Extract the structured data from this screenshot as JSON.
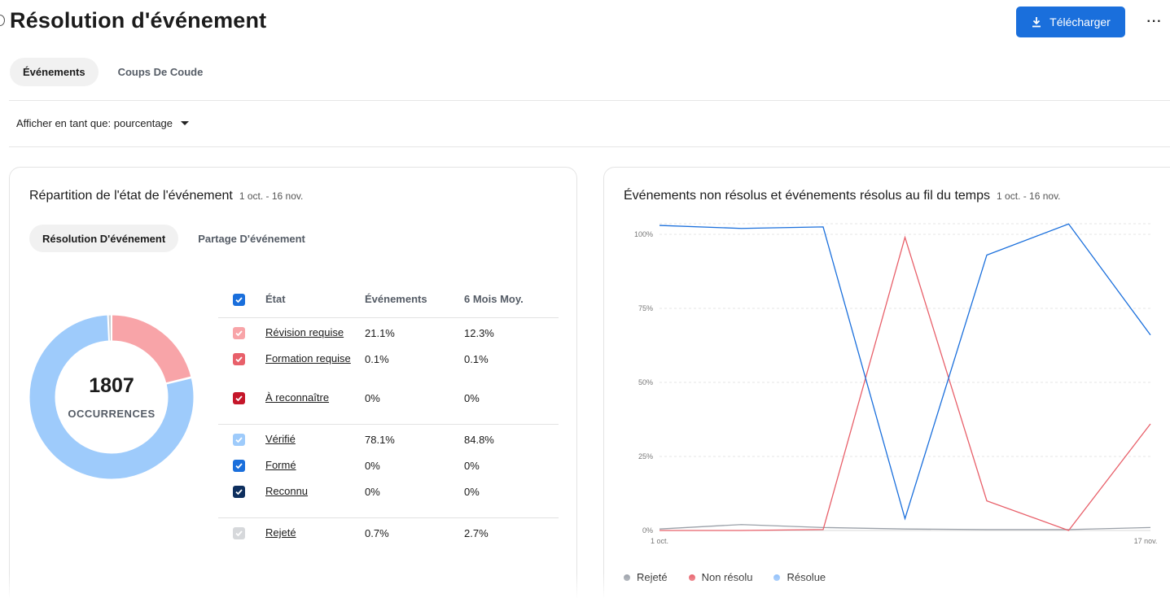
{
  "page": {
    "title": "Résolution d'événement",
    "download_label": "Télécharger",
    "more_label": "···"
  },
  "tabs": [
    {
      "label": "Événements",
      "active": true
    },
    {
      "label": "Coups De Coude",
      "active": false
    }
  ],
  "display_as": {
    "label": "Afficher en tant que: pourcentage"
  },
  "left_card": {
    "title": "Répartition de l'état de l'événement",
    "date_range": "1 oct. - 16 nov.",
    "sub_tabs": [
      {
        "label": "Résolution D'événement",
        "active": true
      },
      {
        "label": "Partage D'événement",
        "active": false
      }
    ],
    "donut": {
      "total": "1807",
      "label": "OCCURRENCES",
      "segments": [
        {
          "name": "Révision requise",
          "percent": 21.1,
          "color": "#f8a4a8"
        },
        {
          "name": "Formation requise",
          "percent": 0.1,
          "color": "#e8606a"
        },
        {
          "name": "Vérifié",
          "percent": 78.1,
          "color": "#9ecbfb"
        },
        {
          "name": "Rejeté",
          "percent": 0.7,
          "color": "#c9ccd1"
        }
      ]
    },
    "table": {
      "headers": {
        "state": "État",
        "events": "Événements",
        "avg": "6 Mois Moy."
      },
      "header_checkbox_color": "#1a6fdc",
      "groups": [
        [
          {
            "state": "Révision requise",
            "events": "21.1%",
            "avg": "12.3%",
            "color": "#f8a4a8"
          },
          {
            "state": "Formation requise",
            "events": "0.1%",
            "avg": "0.1%",
            "color": "#e8606a"
          },
          {
            "state": "À reconnaître",
            "events": "0%",
            "avg": "0%",
            "color": "#c5162a"
          }
        ],
        [
          {
            "state": "Vérifié",
            "events": "78.1%",
            "avg": "84.8%",
            "color": "#9ecbfb"
          },
          {
            "state": "Formé",
            "events": "0%",
            "avg": "0%",
            "color": "#1a6fdc"
          },
          {
            "state": "Reconnu",
            "events": "0%",
            "avg": "0%",
            "color": "#0e2f5e"
          }
        ],
        [
          {
            "state": "Rejeté",
            "events": "0.7%",
            "avg": "2.7%",
            "color": "#d6d8db"
          }
        ]
      ]
    }
  },
  "right_card": {
    "title": "Événements non résolus et événements résolus au fil du temps",
    "date_range": "1 oct. - 16 nov.",
    "chart_data": {
      "type": "line",
      "x_tick_labels": [
        "1 oct.",
        "17 nov."
      ],
      "y_tick_labels": [
        "0%",
        "25%",
        "50%",
        "75%",
        "100%"
      ],
      "ylim": [
        0,
        100
      ],
      "grid": true,
      "legend_position": "bottom-left",
      "series": [
        {
          "name": "Rejeté",
          "color": "#9aa0a8",
          "values": [
            0.5,
            2,
            1,
            0.5,
            0.3,
            0.3,
            1
          ]
        },
        {
          "name": "Non résolu",
          "color": "#e8606a",
          "values": [
            0,
            0,
            0.3,
            99,
            10,
            0,
            36
          ]
        },
        {
          "name": "Résolue",
          "color": "#1a6fdc",
          "values": [
            103,
            102,
            102.5,
            4,
            93,
            103.5,
            66
          ]
        }
      ]
    }
  }
}
